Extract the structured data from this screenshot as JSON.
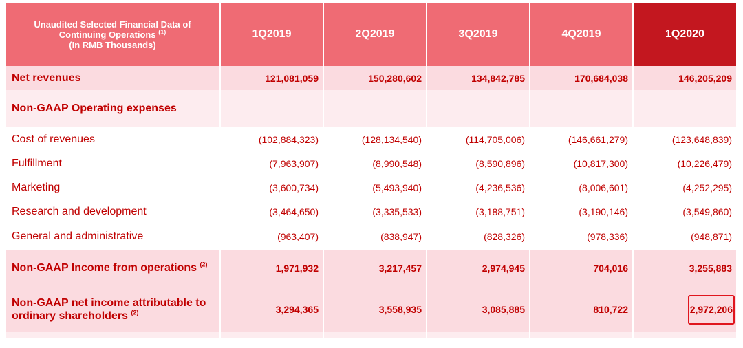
{
  "header": {
    "label_line1": "Unaudited Selected Financial Data of",
    "label_line2": "Continuing Operations",
    "label_line2_note": "(1)",
    "label_line3": "(In RMB Thousands)",
    "columns": [
      "1Q2019",
      "2Q2019",
      "3Q2019",
      "4Q2019",
      "1Q2020"
    ],
    "highlight_color": "#c3171f",
    "header_color": "#ef6b74"
  },
  "rows": [
    {
      "label": "Net revenues",
      "note": "",
      "values": [
        "121,081,059",
        "150,280,602",
        "134,842,785",
        "170,684,038",
        "146,205,209"
      ]
    },
    {
      "label": "Non-GAAP Operating expenses",
      "note": "",
      "values": [
        "",
        "",
        "",
        "",
        ""
      ]
    },
    {
      "label": "Cost of revenues",
      "note": "",
      "values": [
        "(102,884,323)",
        "(128,134,540)",
        "(114,705,006)",
        "(146,661,279)",
        "(123,648,839)"
      ]
    },
    {
      "label": "Fulfillment",
      "note": "",
      "values": [
        "(7,963,907)",
        "(8,990,548)",
        "(8,590,896)",
        "(10,817,300)",
        "(10,226,479)"
      ]
    },
    {
      "label": "Marketing",
      "note": "",
      "values": [
        "(3,600,734)",
        "(5,493,940)",
        "(4,236,536)",
        "(8,006,601)",
        "(4,252,295)"
      ]
    },
    {
      "label": "Research and development",
      "note": "",
      "values": [
        "(3,464,650)",
        "(3,335,533)",
        "(3,188,751)",
        "(3,190,146)",
        "(3,549,860)"
      ]
    },
    {
      "label": "General and administrative",
      "note": "",
      "values": [
        "(963,407)",
        "(838,947)",
        "(828,326)",
        "(978,336)",
        "(948,871)"
      ]
    },
    {
      "label": "Non-GAAP Income from operations",
      "note": "(2)",
      "values": [
        "1,971,932",
        "3,217,457",
        "2,974,945",
        "704,016",
        "3,255,883"
      ]
    },
    {
      "label_line1": "Non-GAAP net income attributable to",
      "label_line2": "ordinary shareholders",
      "note": "(2)",
      "values": [
        "3,294,365",
        "3,558,935",
        "3,085,885",
        "810,722",
        "2,972,206"
      ]
    }
  ],
  "highlight_box_color": "#e0161e"
}
